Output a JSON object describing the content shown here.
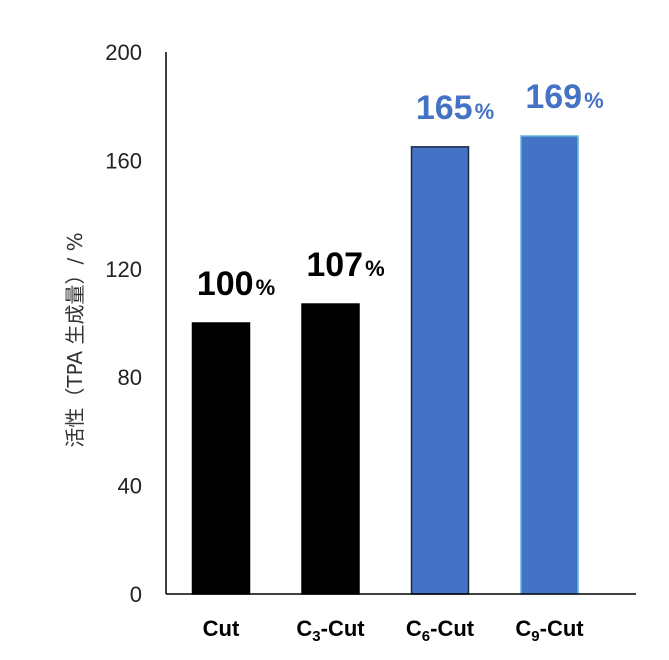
{
  "chart_data": {
    "type": "bar",
    "ylabel": "活性（TPA 生成量）/ %",
    "ylim": [
      0,
      200
    ],
    "yticks": [
      "0",
      "40",
      "80",
      "120",
      "160",
      "200"
    ],
    "categories": [
      {
        "base": "Cut",
        "sub": ""
      },
      {
        "base": "C",
        "sub": "3",
        "rest": "-Cut"
      },
      {
        "base": "C",
        "sub": "6",
        "rest": "-Cut"
      },
      {
        "base": "C",
        "sub": "9",
        "rest": "-Cut"
      }
    ],
    "values": [
      100,
      107,
      165,
      169
    ],
    "data_labels": [
      {
        "num": "100",
        "unit": "%"
      },
      {
        "num": "107",
        "unit": "%"
      },
      {
        "num": "165",
        "unit": "%"
      },
      {
        "num": "169",
        "unit": "%"
      }
    ],
    "colors": {
      "bar_fills": [
        "#000000",
        "#000000",
        "#4472c4",
        "#4472c4"
      ],
      "bar_strokes": [
        "#000000",
        "#000000",
        "#1f2a44",
        "#5bb8d6"
      ],
      "label_colors": [
        "#000000",
        "#000000",
        "#4472c4",
        "#4472c4"
      ],
      "axis": "#000000"
    },
    "grid": false,
    "legend": "none"
  }
}
